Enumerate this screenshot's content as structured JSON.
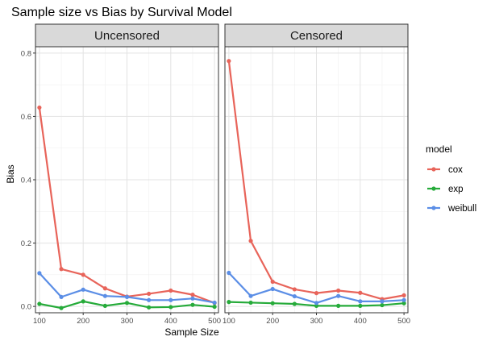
{
  "chart_data": {
    "type": "line",
    "title": "Sample size vs Bias by Survival Model",
    "xlabel": "Sample Size",
    "ylabel": "Bias",
    "xlim": [
      91,
      509
    ],
    "ylim": [
      -0.02,
      0.82
    ],
    "xticks": [
      100,
      200,
      300,
      400,
      500
    ],
    "yticks": [
      0.0,
      0.2,
      0.4,
      0.6,
      0.8
    ],
    "ytick_labels": [
      "0.0",
      "0.2",
      "0.4",
      "0.6",
      "0.8"
    ],
    "grid": true,
    "legend": {
      "title": "model",
      "position": "right"
    },
    "x": [
      100,
      150,
      200,
      250,
      300,
      350,
      400,
      450,
      500
    ],
    "colors": {
      "cox": "#E8645A",
      "exp": "#26AB3A",
      "weibull": "#5B8EE6"
    },
    "facets": [
      {
        "label": "Uncensored",
        "series": [
          {
            "name": "cox",
            "values": [
              0.628,
              0.118,
              0.1,
              0.057,
              0.031,
              0.04,
              0.05,
              0.037,
              0.011
            ]
          },
          {
            "name": "exp",
            "values": [
              0.008,
              -0.005,
              0.016,
              0.002,
              0.011,
              -0.003,
              -0.002,
              0.005,
              -0.001
            ]
          },
          {
            "name": "weibull",
            "values": [
              0.105,
              0.03,
              0.053,
              0.033,
              0.03,
              0.02,
              0.02,
              0.025,
              0.012
            ]
          }
        ]
      },
      {
        "label": "Censored",
        "series": [
          {
            "name": "cox",
            "values": [
              0.775,
              0.207,
              0.078,
              0.054,
              0.042,
              0.05,
              0.043,
              0.023,
              0.035
            ]
          },
          {
            "name": "exp",
            "values": [
              0.014,
              0.012,
              0.01,
              0.008,
              0.002,
              0.002,
              0.002,
              0.004,
              0.01
            ]
          },
          {
            "name": "weibull",
            "values": [
              0.106,
              0.033,
              0.055,
              0.032,
              0.011,
              0.033,
              0.016,
              0.016,
              0.02
            ]
          }
        ]
      }
    ]
  }
}
